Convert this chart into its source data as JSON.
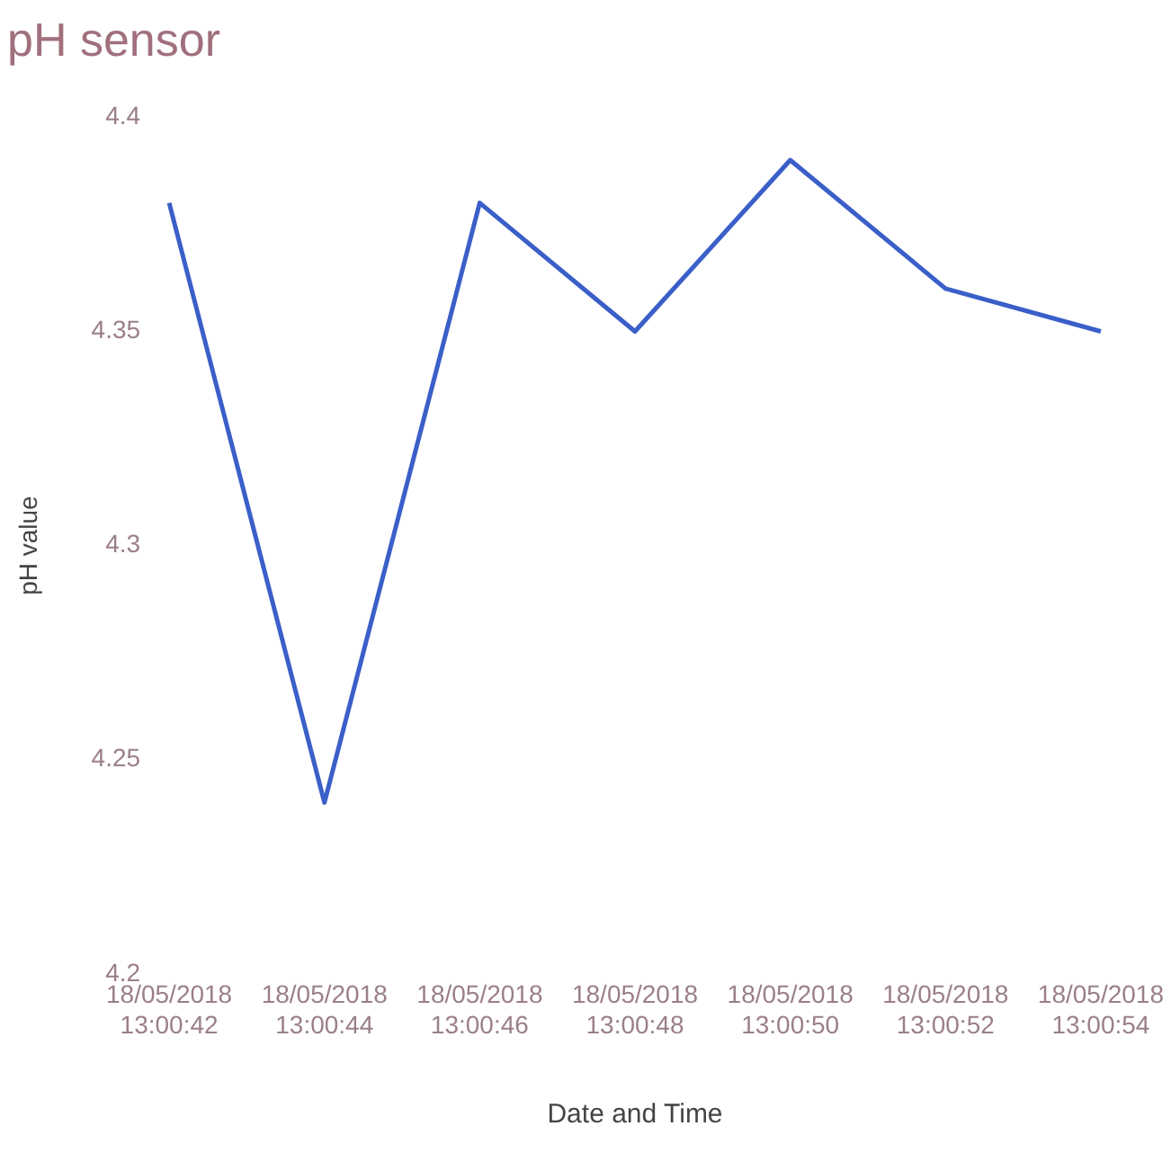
{
  "chart_data": {
    "type": "line",
    "title": "pH sensor",
    "xlabel": "Date and Time",
    "ylabel": "pH value",
    "categories": [
      "18/05/2018 13:00:42",
      "18/05/2018 13:00:44",
      "18/05/2018 13:00:46",
      "18/05/2018 13:00:48",
      "18/05/2018 13:00:50",
      "18/05/2018 13:00:52",
      "18/05/2018 13:00:54"
    ],
    "series": [
      {
        "color": "#3b5fc8",
        "values": [
          4.38,
          4.24,
          4.38,
          4.35,
          4.39,
          4.36,
          4.35
        ]
      }
    ],
    "ylim": [
      4.2,
      4.4
    ],
    "yticks": [
      4.2,
      4.25,
      4.3,
      4.35,
      4.4
    ],
    "grid": false,
    "legend": false,
    "marker": "none",
    "line_style": "solid"
  }
}
